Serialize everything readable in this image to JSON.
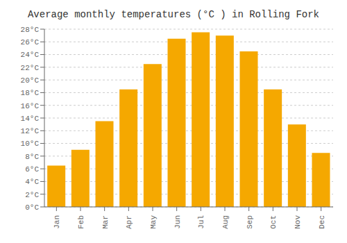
{
  "chart_data": {
    "type": "bar",
    "title": "Average monthly temperatures (°C ) in Rolling Fork",
    "categories": [
      "Jan",
      "Feb",
      "Mar",
      "Apr",
      "May",
      "Jun",
      "Jul",
      "Aug",
      "Sep",
      "Oct",
      "Nov",
      "Dec"
    ],
    "values": [
      6.5,
      9.0,
      13.5,
      18.5,
      22.5,
      26.5,
      27.5,
      27.0,
      24.5,
      18.5,
      13.0,
      8.5
    ],
    "color": "#F5A800",
    "ylim": [
      0,
      28
    ],
    "yticks": [
      {
        "value": 0,
        "label": "0°C"
      },
      {
        "value": 2,
        "label": "2°C"
      },
      {
        "value": 4,
        "label": "4°C"
      },
      {
        "value": 6,
        "label": "6°C"
      },
      {
        "value": 8,
        "label": "8°C"
      },
      {
        "value": 10,
        "label": "10°C"
      },
      {
        "value": 12,
        "label": "12°C"
      },
      {
        "value": 14,
        "label": "14°C"
      },
      {
        "value": 16,
        "label": "16°C"
      },
      {
        "value": 18,
        "label": "18°C"
      },
      {
        "value": 20,
        "label": "20°C"
      },
      {
        "value": 22,
        "label": "22°C"
      },
      {
        "value": 24,
        "label": "24°C"
      },
      {
        "value": 26,
        "label": "26°C"
      },
      {
        "value": 28,
        "label": "28°C"
      }
    ],
    "grid": true
  }
}
